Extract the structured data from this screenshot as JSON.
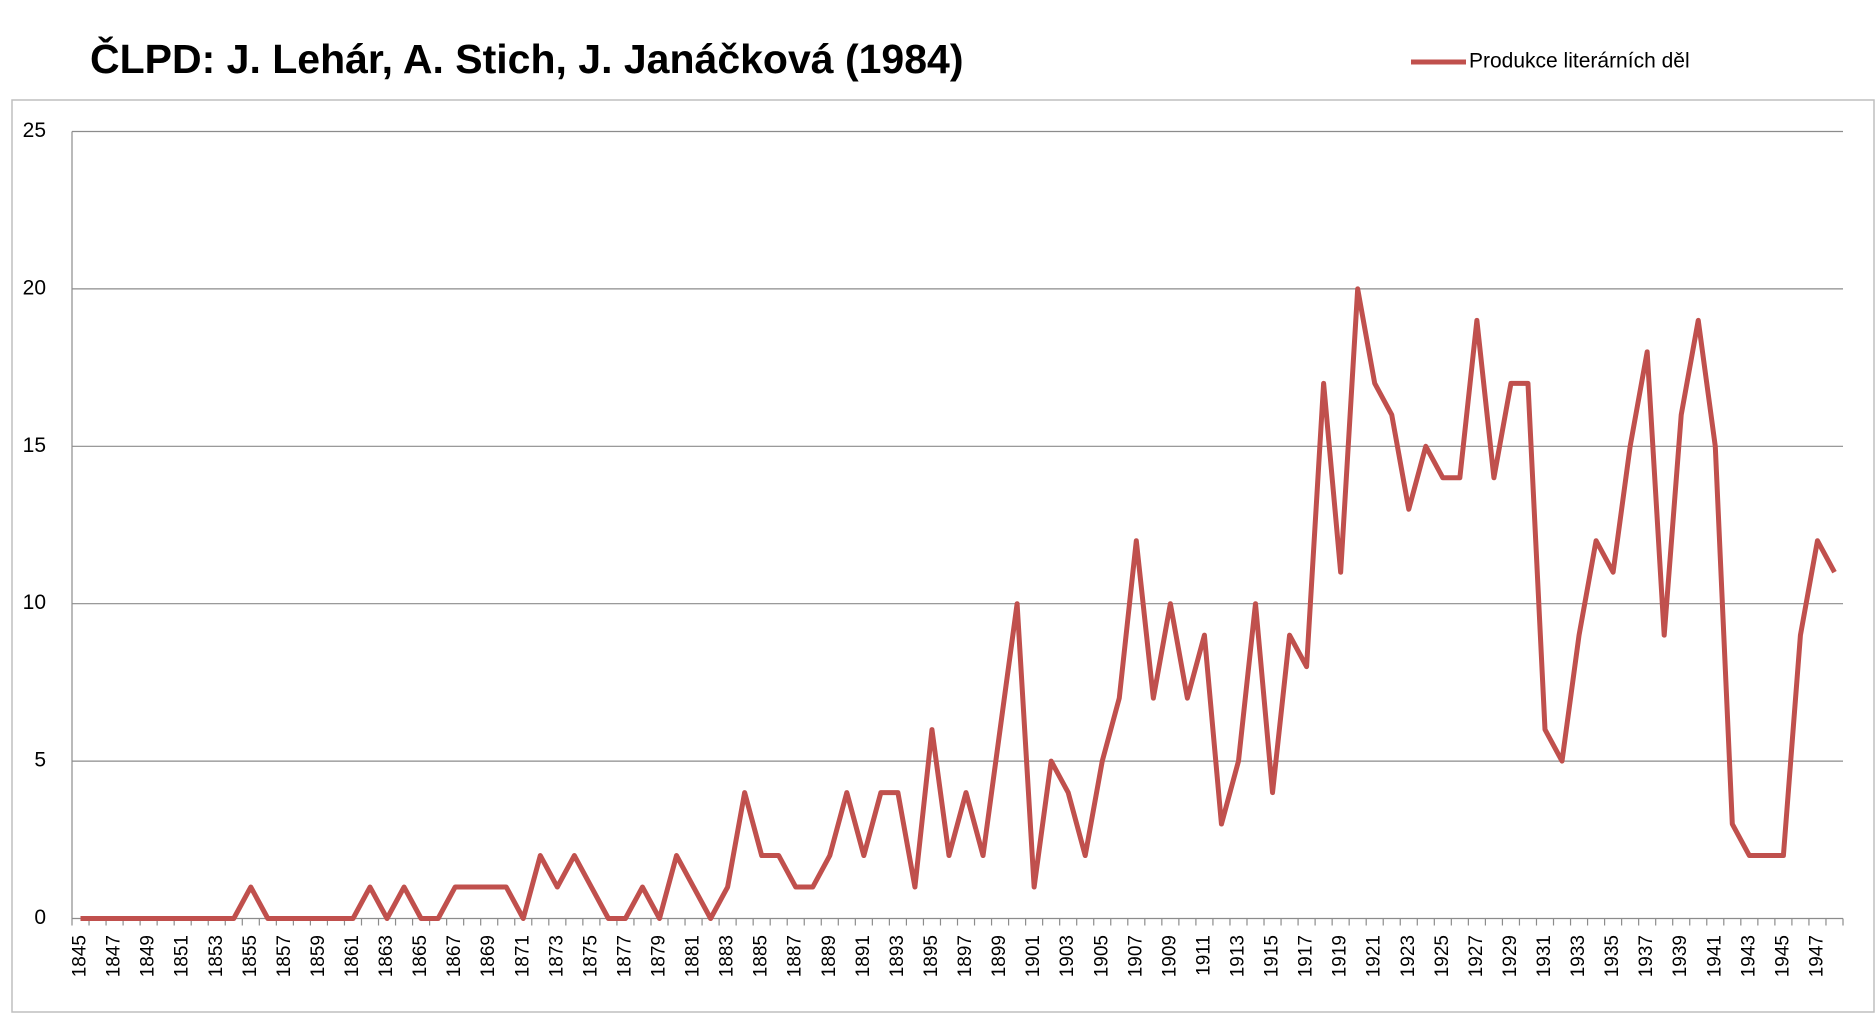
{
  "chart_data": {
    "type": "line",
    "title": "ČLPD: J. Lehár, A. Stich, J. Janáčková (1984)",
    "categories": [
      "1845",
      null,
      "1847",
      null,
      "1849",
      null,
      "1851",
      null,
      "1853",
      null,
      "1855",
      null,
      "1857",
      null,
      "1859",
      null,
      "1861",
      null,
      "1863",
      null,
      "1865",
      null,
      "1867",
      null,
      "1869",
      null,
      "1871",
      null,
      "1873",
      null,
      "1875",
      null,
      "1877",
      null,
      "1879",
      null,
      "1881",
      null,
      "1883",
      null,
      "1885",
      null,
      "1887",
      null,
      "1889",
      null,
      "1891",
      null,
      "1893",
      null,
      "1895",
      null,
      "1897",
      null,
      "1899",
      null,
      "1901",
      null,
      "1903",
      null,
      "1905",
      null,
      "1907",
      null,
      "1909",
      null,
      "1911",
      null,
      "1913",
      null,
      "1915",
      null,
      "1917",
      null,
      "1919",
      null,
      "1921",
      null,
      "1923",
      null,
      "1925",
      null,
      "1927",
      null,
      "1929",
      null,
      "1931",
      null,
      "1933",
      null,
      "1935",
      null,
      "1937",
      null,
      "1939",
      null,
      "1941",
      null,
      "1943",
      null,
      "1945",
      null,
      "1947",
      null
    ],
    "series": [
      {
        "name": "Produkce literárních děl",
        "color": "#c0504d",
        "values": [
          0,
          0,
          0,
          0,
          0,
          0,
          0,
          0,
          0,
          0,
          1,
          0,
          0,
          0,
          0,
          0,
          0,
          1,
          0,
          1,
          0,
          0,
          1,
          1,
          1,
          1,
          0,
          2,
          1,
          2,
          1,
          0,
          0,
          1,
          0,
          2,
          1,
          0,
          1,
          4,
          2,
          2,
          1,
          1,
          2,
          4,
          2,
          4,
          4,
          1,
          6,
          2,
          4,
          2,
          6,
          10,
          1,
          5,
          4,
          2,
          5,
          7,
          12,
          7,
          10,
          7,
          9,
          3,
          5,
          10,
          4,
          9,
          8,
          17,
          11,
          20,
          17,
          16,
          13,
          15,
          14,
          14,
          19,
          14,
          17,
          17,
          6,
          5,
          9,
          12,
          11,
          15,
          18,
          9,
          16,
          19,
          15,
          3,
          2,
          2,
          2,
          9,
          12,
          11
        ]
      }
    ],
    "ylim": [
      0,
      25
    ],
    "yticks": [
      0,
      5,
      10,
      15,
      20,
      25
    ],
    "grid": true,
    "legend": "top-right"
  }
}
